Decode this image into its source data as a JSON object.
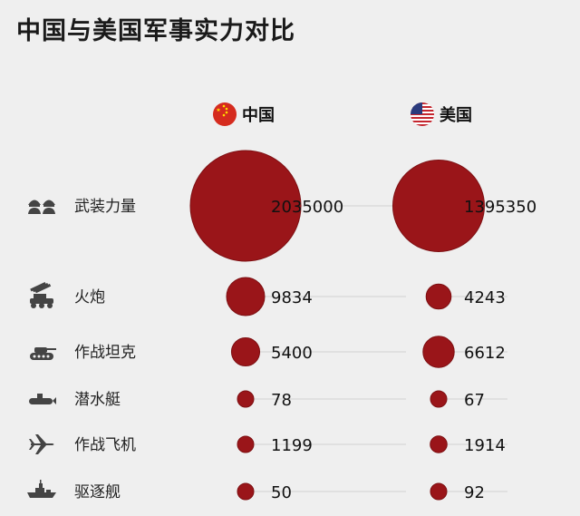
{
  "title": "中国与美国军事实力对比",
  "colors": {
    "bubble": "#9a1519",
    "bubble_stroke": "#7d0f12",
    "icon": "#444444",
    "line": "#d2d2d2"
  },
  "chart_data": {
    "type": "bubble-table",
    "title": "中国与美国军事实力对比",
    "columns": [
      {
        "name": "中国",
        "flag": "china-flag-icon"
      },
      {
        "name": "美国",
        "flag": "usa-flag-icon"
      }
    ],
    "rows": [
      {
        "label": "武装力量",
        "icon": "soldiers-icon",
        "values": [
          2035000,
          1395350
        ]
      },
      {
        "label": "火炮",
        "icon": "artillery-icon",
        "values": [
          9834,
          4243
        ]
      },
      {
        "label": "作战坦克",
        "icon": "tank-icon",
        "values": [
          5400,
          6612
        ]
      },
      {
        "label": "潜水艇",
        "icon": "submarine-icon",
        "values": [
          78,
          67
        ]
      },
      {
        "label": "作战飞机",
        "icon": "aircraft-icon",
        "values": [
          1199,
          1914
        ]
      },
      {
        "label": "驱逐舰",
        "icon": "destroyer-icon",
        "values": [
          50,
          92
        ]
      }
    ]
  }
}
